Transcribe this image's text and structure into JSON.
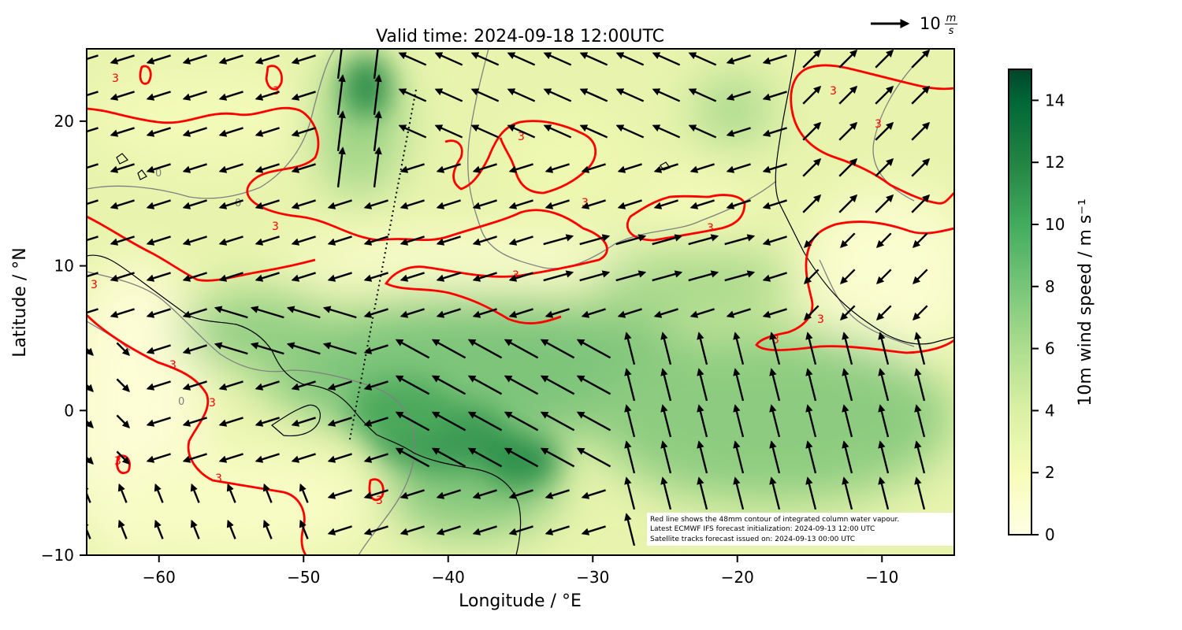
{
  "title": "Valid time: 2024-09-18 12:00UTC",
  "x_axis": {
    "label": "Longitude / °E",
    "range": [
      -65,
      -5
    ],
    "ticks": [
      -60,
      -50,
      -40,
      -30,
      -20,
      -10
    ],
    "tick_labels": [
      "−60",
      "−50",
      "−40",
      "−30",
      "−20",
      "−10"
    ]
  },
  "y_axis": {
    "label": "Latitude / °N",
    "range": [
      -10,
      25
    ],
    "ticks": [
      -10,
      0,
      10,
      20
    ],
    "tick_labels": [
      "−10",
      "0",
      "10",
      "20"
    ]
  },
  "colorbar": {
    "label": "10m wind speed / m s⁻¹",
    "range": [
      0,
      15
    ],
    "ticks": [
      0,
      2,
      4,
      6,
      8,
      10,
      12,
      14
    ],
    "tick_labels": [
      "0",
      "2",
      "4",
      "6",
      "8",
      "10",
      "12",
      "14"
    ],
    "colormap": "YlGn"
  },
  "quiver_key": {
    "label_main": "10",
    "label_num": "m",
    "label_den": "s",
    "value": 10
  },
  "notes": [
    "Red line shows the 48mm contour of integrated column water vapour.",
    "Latest ECMWF IFS forecast initialization: 2024-09-13 12:00 UTC",
    "Satellite tracks forecast issued on: 2024-09-13 00:00 UTC"
  ],
  "contour_label": "3",
  "coastline_label": "0",
  "colors": {
    "contour": "#ff0000",
    "coastline": "#000000",
    "grey_contour": "#808080",
    "track": "#000000"
  },
  "satellite_track": {
    "lon": [
      -46.8,
      -42.2
    ],
    "lat": [
      -2,
      22.3
    ]
  }
}
